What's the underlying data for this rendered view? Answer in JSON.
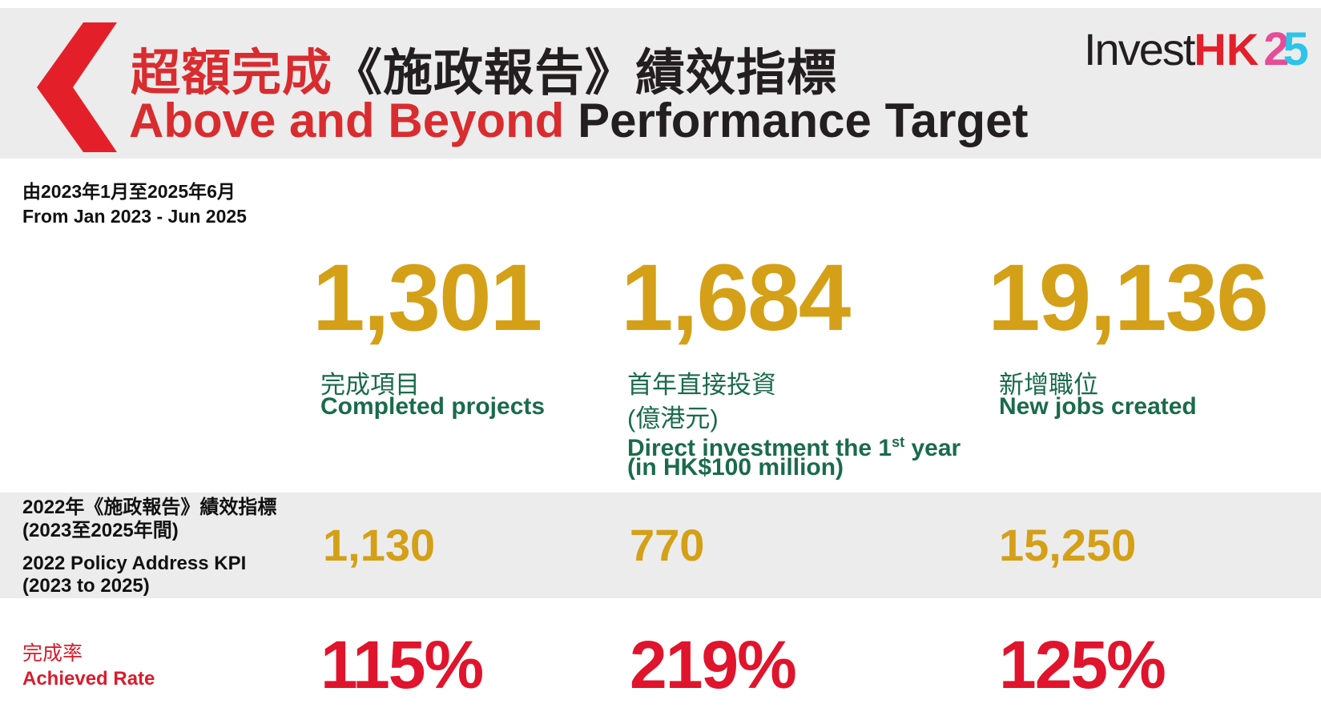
{
  "header": {
    "title_zh_red": "超額完成",
    "title_zh_dark": "《施政報告》績效指標",
    "title_en_red": "Above and Beyond",
    "title_en_dark": "Performance Target",
    "accent_color": "#d92c2f"
  },
  "logo": {
    "invest": "Invest",
    "hk": "HK",
    "num_2": "2",
    "num_5": "5"
  },
  "period": {
    "zh": "由2023年1月至2025年6月",
    "en": "From Jan 2023 - Jun 2025"
  },
  "metrics": [
    {
      "value": "1,301",
      "label_zh": "完成項目",
      "label_en": "Completed projects",
      "kpi": "1,130",
      "rate": "115%"
    },
    {
      "value": "1,684",
      "label_zh": "首年直接投資",
      "label_zh_2": "(億港元)",
      "label_en": "Direct investment the 1",
      "label_en_sup": "st",
      "label_en_tail": " year",
      "label_en_2": "(in HK$100 million)",
      "kpi": "770",
      "rate": "219%"
    },
    {
      "value": "19,136",
      "label_zh": "新增職位",
      "label_en": "New jobs created",
      "kpi": "15,250",
      "rate": "125%"
    }
  ],
  "kpi_row": {
    "label_zh": "2022年《施政報告》績效指標",
    "label_zh_2": "(2023至2025年間)",
    "label_en": "2022 Policy Address KPI",
    "label_en_2": "(2023 to 2025)"
  },
  "rate_row": {
    "label_zh": "完成率",
    "label_en": "Achieved Rate"
  },
  "colors": {
    "gold": "#d4a017",
    "green": "#1a6b4b",
    "rate_red": "#e0142c",
    "band_gray": "#ececec"
  }
}
